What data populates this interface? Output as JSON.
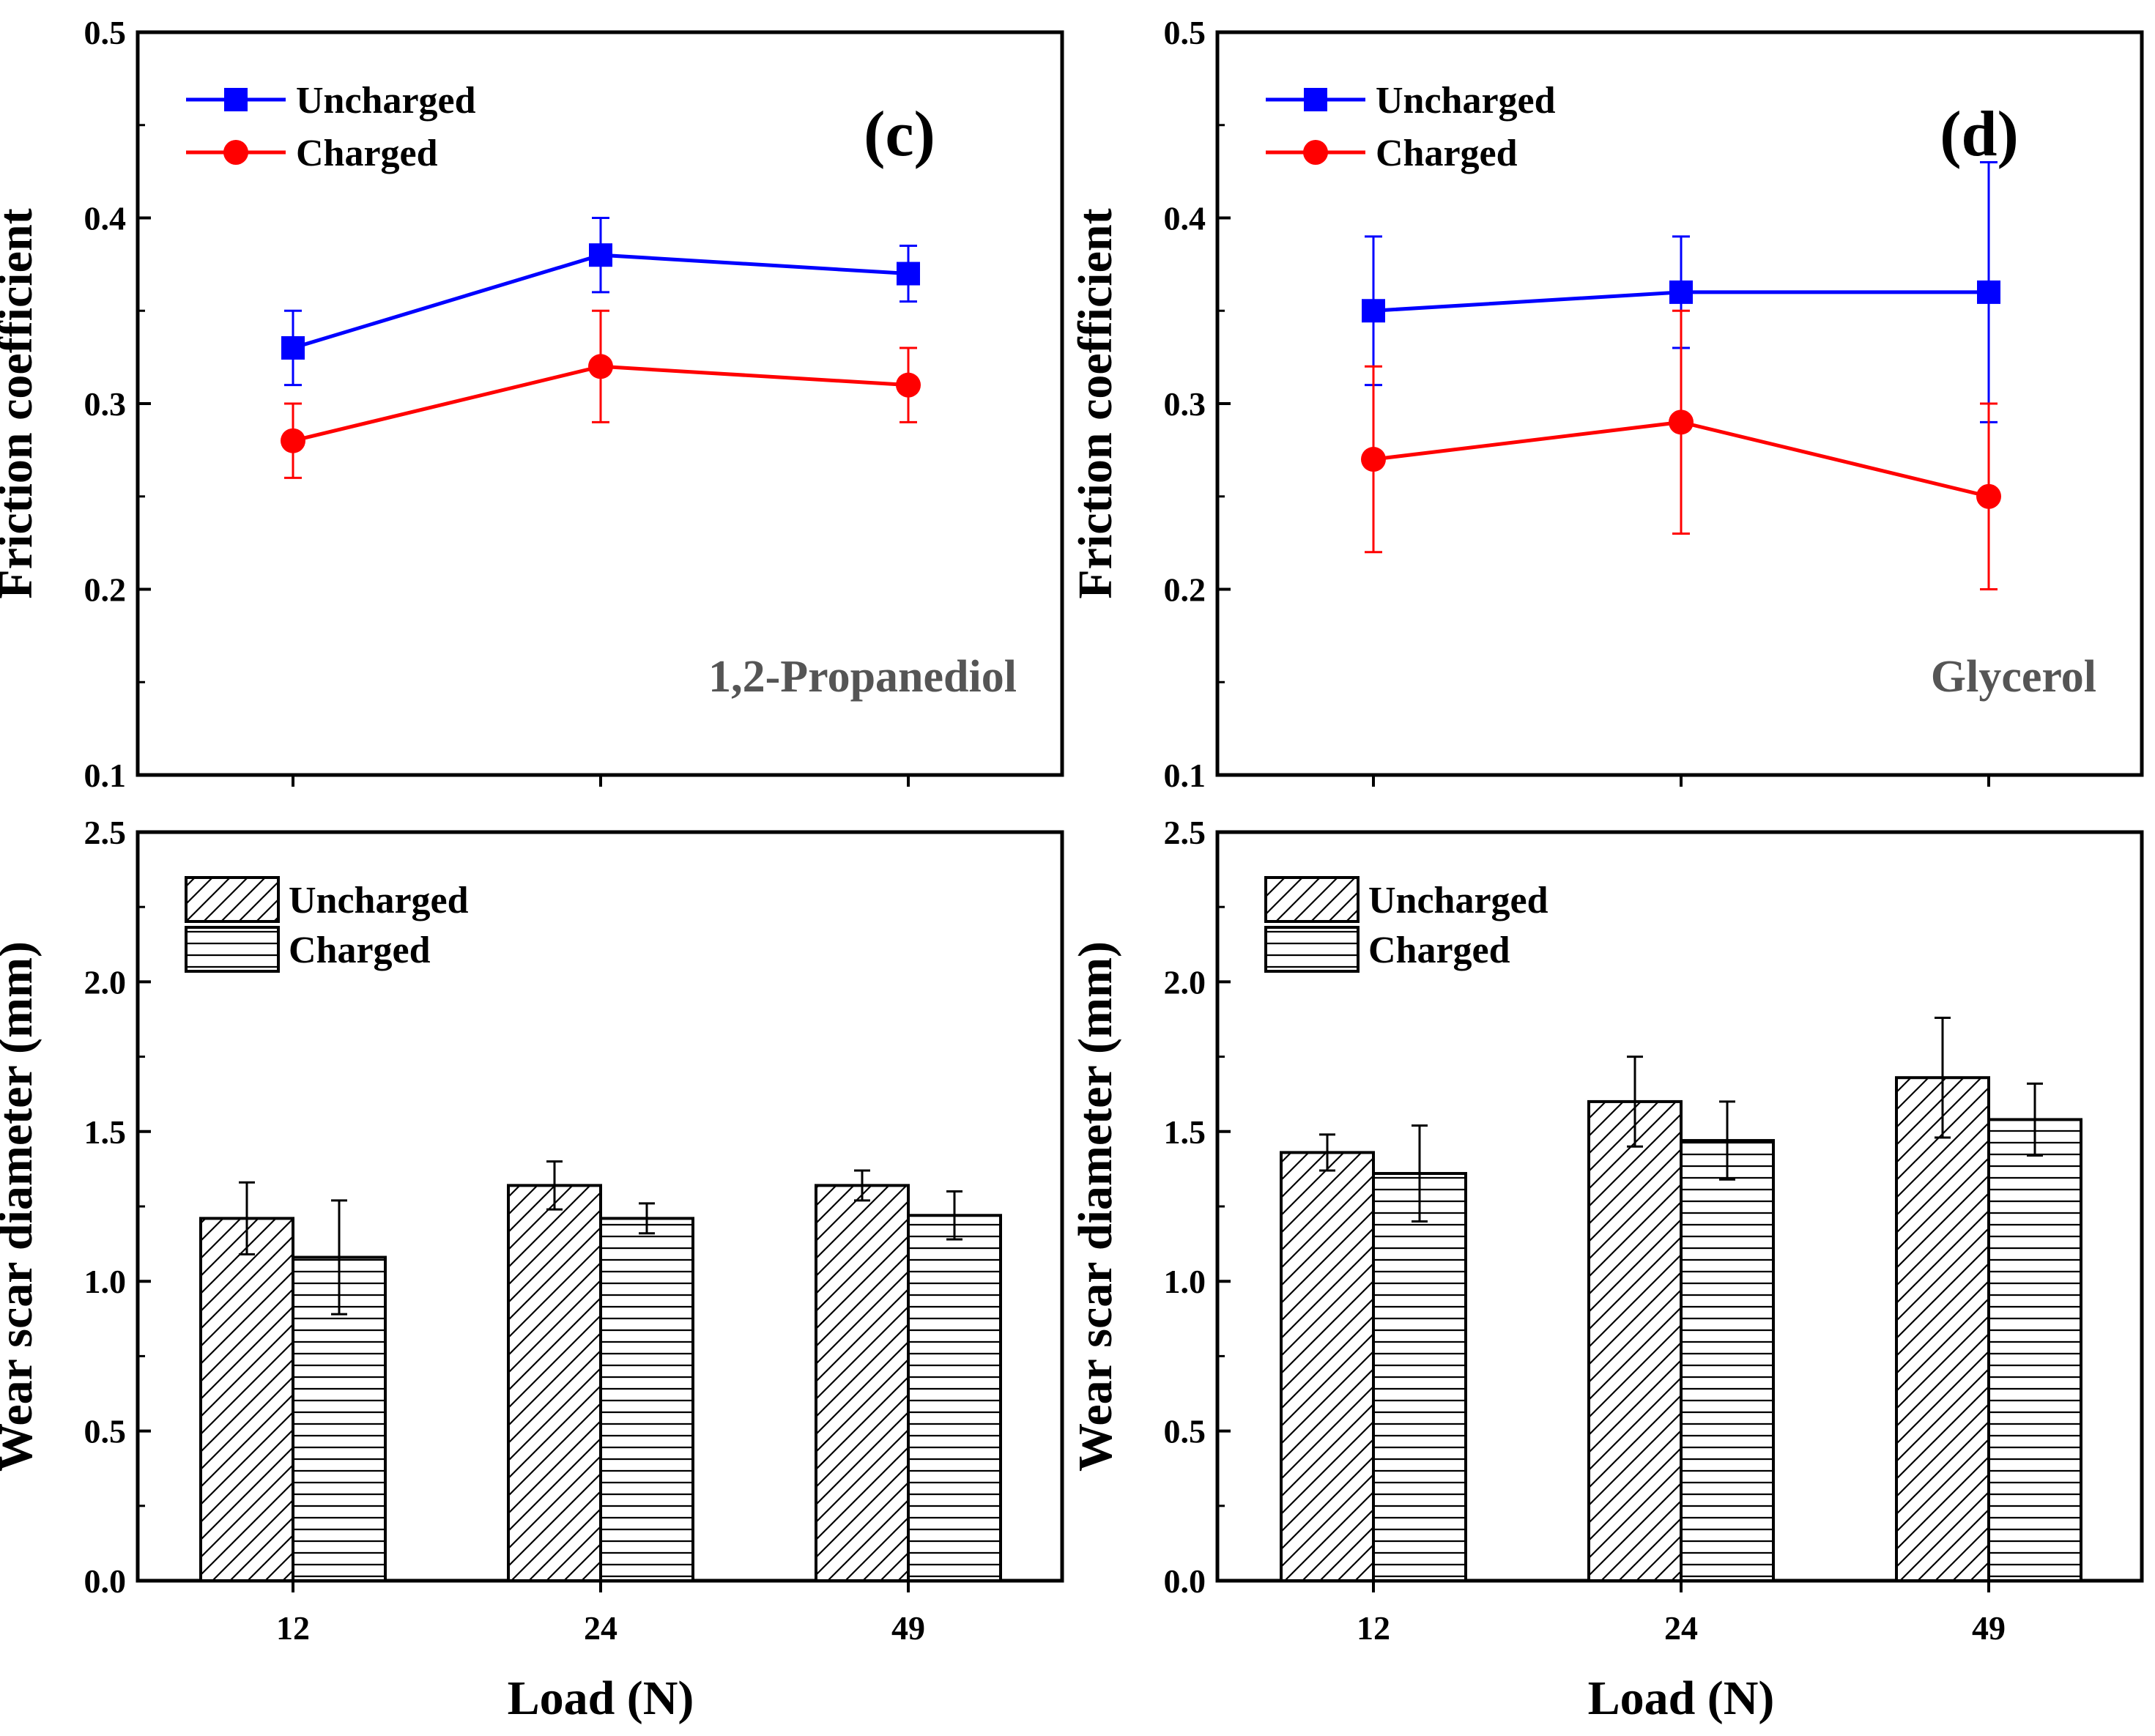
{
  "figure": {
    "shared_xlabel": "Load (N)"
  },
  "chart_data": [
    {
      "id": "c-friction",
      "type": "line",
      "panel_label": "(c)",
      "annotation": "1,2-Propanediol",
      "ylabel": "Friction coefficient",
      "xlabel": "",
      "categories": [
        "12",
        "24",
        "49"
      ],
      "ylim": [
        0.1,
        0.5
      ],
      "yticks": [
        "0.1",
        "0.2",
        "0.3",
        "0.4",
        "0.5"
      ],
      "legend_position": "top-left",
      "series": [
        {
          "name": "Uncharged",
          "color": "#0000ff",
          "marker": "square",
          "values": [
            0.33,
            0.38,
            0.37
          ],
          "errors": [
            0.02,
            0.02,
            0.015
          ]
        },
        {
          "name": "Charged",
          "color": "#ff0000",
          "marker": "circle",
          "values": [
            0.28,
            0.32,
            0.31
          ],
          "errors": [
            0.02,
            0.03,
            0.02
          ]
        }
      ]
    },
    {
      "id": "d-friction",
      "type": "line",
      "panel_label": "(d)",
      "annotation": "Glycerol",
      "ylabel": "Friction coefficient",
      "xlabel": "",
      "categories": [
        "12",
        "24",
        "49"
      ],
      "ylim": [
        0.1,
        0.5
      ],
      "yticks": [
        "0.1",
        "0.2",
        "0.3",
        "0.4",
        "0.5"
      ],
      "legend_position": "top-left",
      "series": [
        {
          "name": "Uncharged",
          "color": "#0000ff",
          "marker": "square",
          "values": [
            0.35,
            0.36,
            0.36
          ],
          "errors": [
            0.04,
            0.03,
            0.07
          ]
        },
        {
          "name": "Charged",
          "color": "#ff0000",
          "marker": "circle",
          "values": [
            0.27,
            0.29,
            0.25
          ],
          "errors": [
            0.05,
            0.06,
            0.05
          ]
        }
      ]
    },
    {
      "id": "c-wear",
      "type": "bar",
      "ylabel": "Wear scar diameter (mm)",
      "xlabel": "Load (N)",
      "categories": [
        "12",
        "24",
        "49"
      ],
      "ylim": [
        0.0,
        2.5
      ],
      "yticks": [
        "0.0",
        "0.5",
        "1.0",
        "1.5",
        "2.0",
        "2.5"
      ],
      "legend_position": "top-left",
      "series": [
        {
          "name": "Uncharged",
          "pattern": "diagonal",
          "values": [
            1.21,
            1.32,
            1.32
          ],
          "errors": [
            0.12,
            0.08,
            0.05
          ]
        },
        {
          "name": "Charged",
          "pattern": "horizontal",
          "values": [
            1.08,
            1.21,
            1.22
          ],
          "errors": [
            0.19,
            0.05,
            0.08
          ]
        }
      ]
    },
    {
      "id": "d-wear",
      "type": "bar",
      "ylabel": "Wear scar diameter (mm)",
      "xlabel": "Load (N)",
      "categories": [
        "12",
        "24",
        "49"
      ],
      "ylim": [
        0.0,
        2.5
      ],
      "yticks": [
        "0.0",
        "0.5",
        "1.0",
        "1.5",
        "2.0",
        "2.5"
      ],
      "legend_position": "top-left",
      "series": [
        {
          "name": "Uncharged",
          "pattern": "diagonal",
          "values": [
            1.43,
            1.6,
            1.68
          ],
          "errors": [
            0.06,
            0.15,
            0.2
          ]
        },
        {
          "name": "Charged",
          "pattern": "horizontal",
          "values": [
            1.36,
            1.47,
            1.54
          ],
          "errors": [
            0.16,
            0.13,
            0.12
          ]
        }
      ]
    }
  ]
}
